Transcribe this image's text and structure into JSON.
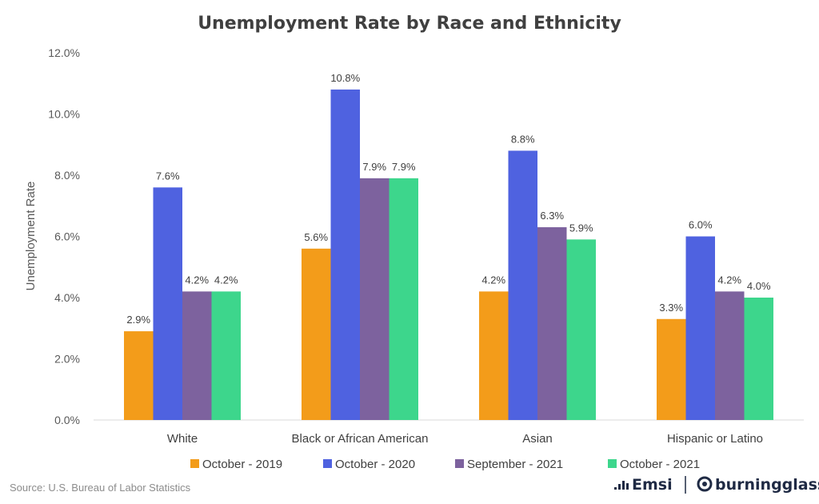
{
  "chart_data": {
    "type": "bar",
    "title": "Unemployment  Rate by Race and Ethnicity",
    "xlabel": "",
    "ylabel": "Unemployment  Rate",
    "categories": [
      "White",
      "Black or African American",
      "Asian",
      "Hispanic or Latino"
    ],
    "series": [
      {
        "name": "October - 2019",
        "color": "#f39c1a",
        "values": [
          2.9,
          5.6,
          4.2,
          3.3
        ]
      },
      {
        "name": "October - 2020",
        "color": "#4f62e0",
        "values": [
          7.6,
          10.8,
          8.8,
          6.0
        ]
      },
      {
        "name": "September - 2021",
        "color": "#7d629e",
        "values": [
          4.2,
          7.9,
          6.3,
          4.2
        ]
      },
      {
        "name": "October - 2021",
        "color": "#3dd68c",
        "values": [
          4.2,
          7.9,
          5.9,
          4.0
        ]
      }
    ],
    "ylim": [
      0,
      12
    ],
    "yticks": [
      0,
      2,
      4,
      6,
      8,
      10,
      12
    ],
    "ytick_format": "percent_1dp",
    "grid": false,
    "legend": "bottom",
    "data_labels": true
  },
  "footer": {
    "source": "Source:  U.S. Bureau of Labor Statistics",
    "brand_left": "Emsi",
    "brand_right": "burningglass"
  }
}
